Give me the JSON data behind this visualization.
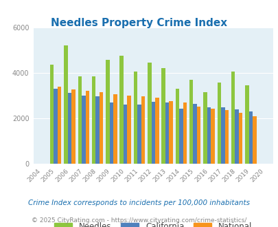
{
  "title": "Needles Property Crime Index",
  "years": [
    2004,
    2005,
    2006,
    2007,
    2008,
    2009,
    2010,
    2011,
    2012,
    2013,
    2014,
    2015,
    2016,
    2017,
    2018,
    2019,
    2020
  ],
  "needles": [
    0,
    4350,
    5200,
    3850,
    3850,
    4550,
    4750,
    4050,
    4450,
    4200,
    3300,
    3700,
    3150,
    3550,
    4050,
    3450,
    0
  ],
  "california": [
    0,
    3280,
    3100,
    3000,
    2950,
    2700,
    2600,
    2580,
    2730,
    2670,
    2420,
    2620,
    2480,
    2480,
    2370,
    2300,
    0
  ],
  "national": [
    0,
    3380,
    3250,
    3200,
    3140,
    3040,
    2980,
    2960,
    2900,
    2750,
    2680,
    2490,
    2420,
    2360,
    2220,
    2090,
    0
  ],
  "colors": {
    "needles": "#8dc63f",
    "california": "#4f81bd",
    "national": "#f7941d"
  },
  "bg_color": "#e4f0f6",
  "ylim": [
    0,
    6000
  ],
  "yticks": [
    0,
    2000,
    4000,
    6000
  ],
  "legend_labels": [
    "Needles",
    "California",
    "National"
  ],
  "footnote1": "Crime Index corresponds to incidents per 100,000 inhabitants",
  "footnote2_plain": "© 2025 CityRating.com - ",
  "footnote2_link": "https://www.cityrating.com/crime-statistics/",
  "title_color": "#1a6faf",
  "tick_color": "#888888",
  "footnote1_color": "#1a6faf",
  "footnote2_color": "#888888",
  "link_color": "#2a9fd8",
  "bar_width": 0.27
}
